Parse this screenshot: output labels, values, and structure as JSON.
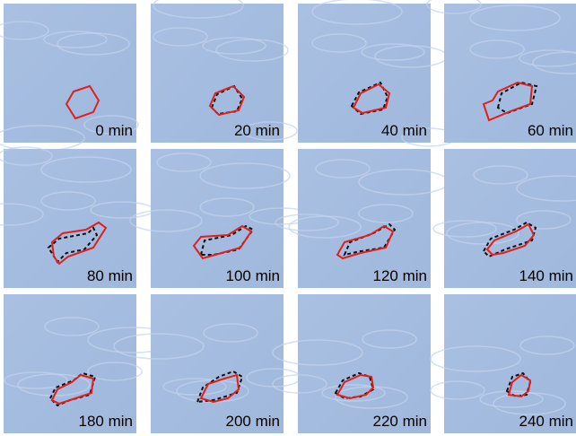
{
  "panels": [
    {
      "label": "0 min"
    },
    {
      "label": "20 min"
    },
    {
      "label": "40 min"
    },
    {
      "label": "60 min"
    },
    {
      "label": "80 min"
    },
    {
      "label": "100 min"
    },
    {
      "label": "120 min"
    },
    {
      "label": "140 min"
    },
    {
      "label": "180 min"
    },
    {
      "label": "200 min"
    },
    {
      "label": "220 min"
    },
    {
      "label": "240 min"
    }
  ]
}
